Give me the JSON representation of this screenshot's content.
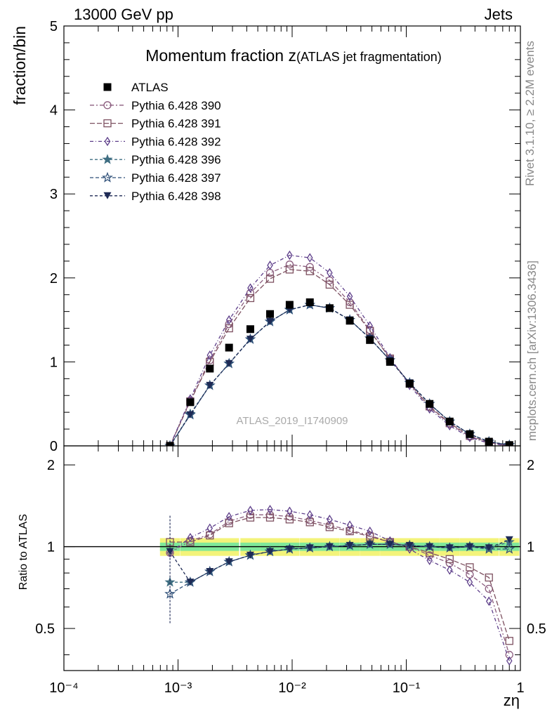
{
  "header": {
    "energy_label": "13000 GeV pp",
    "process_label": "Jets",
    "rivet_label": "Rivet 3.1.10, ≥ 2.2M events",
    "mcplots_label": "mcplots.cern.ch [arXiv:1306.3436]"
  },
  "chart_data": {
    "type": "scatter",
    "title": "Momentum fraction",
    "title_symbol": "z",
    "subtitle": "(ATLAS jet fragmentation)",
    "analysis_label": "ATLAS_2019_I1740909",
    "xlabel": "zη",
    "ylabel": "fraction/bin",
    "ratio_ylabel": "Ratio to ATLAS",
    "x_scale": "log",
    "xlim": [
      0.0001,
      1
    ],
    "ylim": [
      0,
      5
    ],
    "ratio_ylim": [
      0.35,
      2.35
    ],
    "x_tick_labels": [
      "10⁻⁴",
      "10⁻³",
      "10⁻²",
      "10⁻¹",
      "1"
    ],
    "y_tick_labels": [
      "0",
      "1",
      "2",
      "3",
      "4",
      "5"
    ],
    "ratio_tick_labels": [
      "0.5",
      "1",
      "2"
    ],
    "legend_position": "top-left",
    "x": [
      0.00085,
      0.00128,
      0.0019,
      0.0028,
      0.0043,
      0.0064,
      0.0095,
      0.0143,
      0.0213,
      0.032,
      0.048,
      0.072,
      0.107,
      0.16,
      0.24,
      0.36,
      0.53,
      0.8
    ],
    "data": {
      "name": "ATLAS",
      "values": [
        0.0,
        0.52,
        0.92,
        1.17,
        1.39,
        1.57,
        1.68,
        1.71,
        1.64,
        1.49,
        1.26,
        1.0,
        0.74,
        0.5,
        0.29,
        0.14,
        0.05,
        0.01
      ]
    },
    "series": [
      {
        "name": "Pythia 6.428 390",
        "color": "#8b5d7e",
        "marker": "circle-open",
        "values": [
          0.0,
          0.54,
          1.02,
          1.45,
          1.82,
          2.06,
          2.16,
          2.13,
          1.97,
          1.71,
          1.38,
          1.04,
          0.74,
          0.46,
          0.26,
          0.11,
          0.04,
          0.0
        ],
        "ratio": [
          0.95,
          1.05,
          1.11,
          1.24,
          1.31,
          1.31,
          1.29,
          1.25,
          1.2,
          1.15,
          1.1,
          1.04,
          1.0,
          0.93,
          0.87,
          0.79,
          0.7,
          0.4
        ]
      },
      {
        "name": "Pythia 6.428 391",
        "color": "#7d5060",
        "marker": "square-open",
        "values": [
          0.0,
          0.53,
          1.0,
          1.4,
          1.76,
          1.99,
          2.1,
          2.08,
          1.92,
          1.68,
          1.37,
          1.04,
          0.74,
          0.47,
          0.27,
          0.12,
          0.04,
          0.0
        ],
        "ratio": [
          1.04,
          1.04,
          1.1,
          1.22,
          1.28,
          1.28,
          1.26,
          1.23,
          1.18,
          1.14,
          1.09,
          1.04,
          1.0,
          0.95,
          0.9,
          0.84,
          0.77,
          0.45
        ]
      },
      {
        "name": "Pythia 6.428 392",
        "color": "#5e3f8a",
        "marker": "diamond-open",
        "values": [
          0.0,
          0.56,
          1.08,
          1.5,
          1.88,
          2.15,
          2.27,
          2.24,
          2.06,
          1.78,
          1.43,
          1.05,
          0.72,
          0.44,
          0.24,
          0.1,
          0.03,
          0.0
        ],
        "ratio": [
          0.95,
          1.08,
          1.17,
          1.29,
          1.36,
          1.37,
          1.35,
          1.31,
          1.26,
          1.2,
          1.14,
          1.05,
          0.98,
          0.89,
          0.82,
          0.74,
          0.63,
          0.38
        ]
      },
      {
        "name": "Pythia 6.428 396",
        "color": "#3f6e82",
        "marker": "star-filled",
        "values": [
          0.0,
          0.38,
          0.72,
          0.98,
          1.27,
          1.48,
          1.62,
          1.68,
          1.64,
          1.5,
          1.28,
          1.02,
          0.75,
          0.5,
          0.29,
          0.14,
          0.05,
          0.01
        ],
        "ratio": [
          0.74,
          0.74,
          0.81,
          0.88,
          0.93,
          0.96,
          0.98,
          0.99,
          1.0,
          1.01,
          1.02,
          1.02,
          1.01,
          1.0,
          0.99,
          1.0,
          0.99,
          1.04
        ]
      },
      {
        "name": "Pythia 6.428 397",
        "color": "#2e4f78",
        "marker": "star-open",
        "values": [
          0.0,
          0.37,
          0.72,
          0.98,
          1.27,
          1.48,
          1.62,
          1.68,
          1.64,
          1.5,
          1.28,
          1.02,
          0.75,
          0.5,
          0.29,
          0.14,
          0.05,
          0.01
        ],
        "ratio": [
          0.67,
          0.74,
          0.81,
          0.88,
          0.93,
          0.96,
          0.98,
          0.99,
          1.0,
          1.01,
          1.02,
          1.02,
          1.01,
          1.0,
          0.99,
          1.0,
          0.98,
          0.98
        ]
      },
      {
        "name": "Pythia 6.428 398",
        "color": "#1e2a55",
        "marker": "triangle-down-filled",
        "values": [
          0.0,
          0.37,
          0.72,
          0.98,
          1.27,
          1.48,
          1.62,
          1.68,
          1.64,
          1.5,
          1.28,
          1.02,
          0.75,
          0.5,
          0.29,
          0.14,
          0.05,
          0.01
        ],
        "ratio": [
          0.96,
          0.74,
          0.81,
          0.88,
          0.93,
          0.96,
          0.98,
          0.99,
          1.0,
          1.01,
          1.02,
          1.02,
          1.01,
          1.0,
          0.99,
          1.0,
          0.99,
          1.06
        ]
      }
    ]
  }
}
